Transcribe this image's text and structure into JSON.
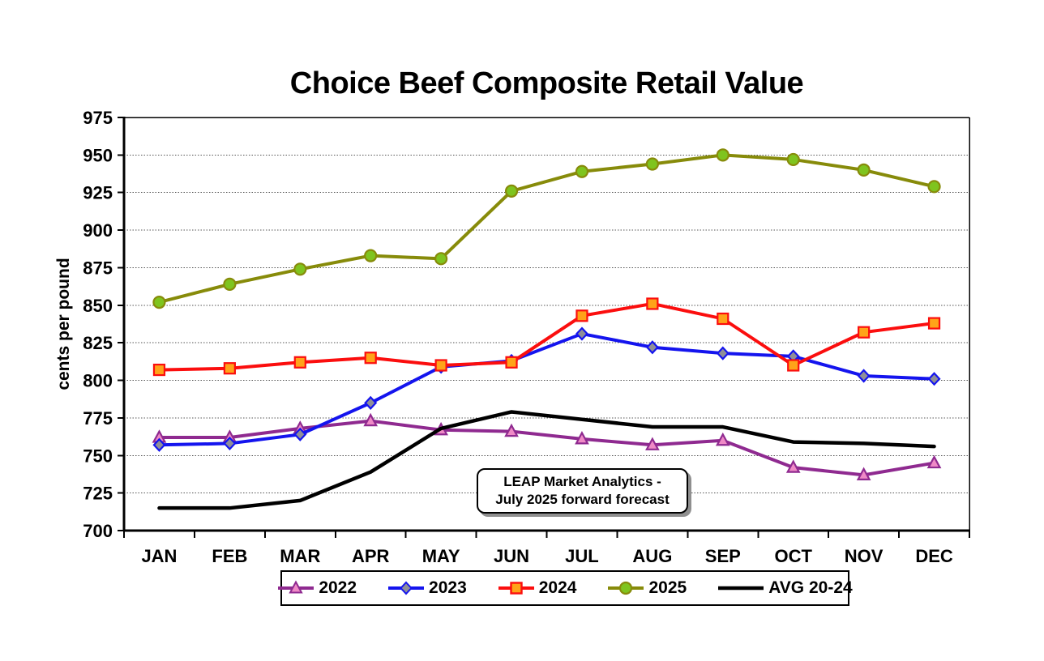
{
  "chart": {
    "title": "Choice Beef Composite Retail Value",
    "ylabel": "cents per pound",
    "annotation": {
      "line1": "LEAP Market Analytics -",
      "line2": "July 2025 forward forecast"
    }
  },
  "chart_data": {
    "type": "line",
    "title": "Choice Beef Composite Retail Value",
    "xlabel": "",
    "ylabel": "cents per pound",
    "categories": [
      "JAN",
      "FEB",
      "MAR",
      "APR",
      "MAY",
      "JUN",
      "JUL",
      "AUG",
      "SEP",
      "OCT",
      "NOV",
      "DEC"
    ],
    "ylim": [
      700,
      975
    ],
    "ytick_step": 25,
    "grid": true,
    "legend_position": "bottom",
    "annotation_text": "LEAP Market Analytics - July 2025 forward forecast",
    "series": [
      {
        "name": "2022",
        "color": "#8F2A90",
        "marker": "triangle",
        "marker_fill": "#EF8AC6",
        "values": [
          762,
          762,
          768,
          773,
          767,
          766,
          761,
          757,
          760,
          742,
          737,
          745
        ]
      },
      {
        "name": "2023",
        "color": "#1414EE",
        "marker": "diamond",
        "marker_fill": "#8F8F98",
        "values": [
          757,
          758,
          764,
          785,
          809,
          813,
          831,
          822,
          818,
          816,
          803,
          801
        ]
      },
      {
        "name": "2024",
        "color": "#FB0E0E",
        "marker": "square",
        "marker_fill": "#FFA319",
        "values": [
          807,
          808,
          812,
          815,
          810,
          812,
          843,
          851,
          841,
          810,
          832,
          838
        ]
      },
      {
        "name": "2025",
        "color": "#878B0A",
        "marker": "circle",
        "marker_fill": "#7FC41F",
        "values": [
          852,
          864,
          874,
          883,
          881,
          926,
          939,
          944,
          950,
          947,
          940,
          929
        ]
      },
      {
        "name": "AVG 20-24",
        "color": "#000000",
        "marker": "none",
        "marker_fill": "#000000",
        "values": [
          715,
          715,
          720,
          739,
          768,
          779,
          774,
          769,
          769,
          759,
          758,
          756
        ]
      }
    ]
  }
}
